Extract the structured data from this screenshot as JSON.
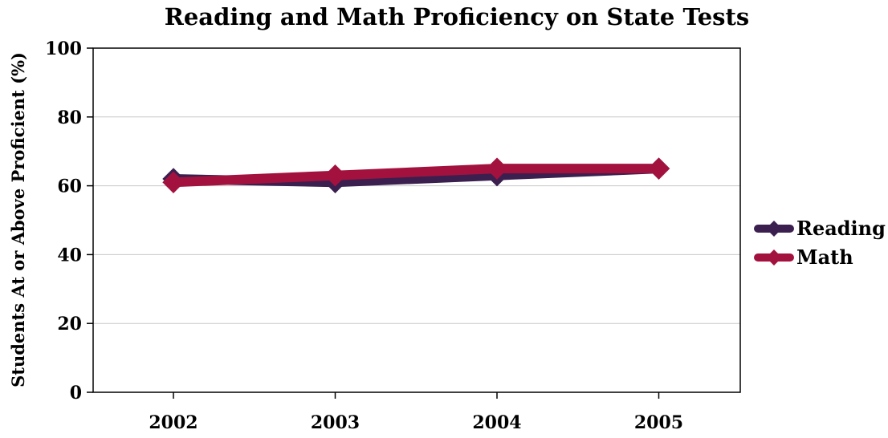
{
  "chart_data": {
    "type": "line",
    "title": "Reading and Math Proficiency on State Tests",
    "xlabel": "",
    "ylabel": "Students At or Above Proficient (%)",
    "categories": [
      "2002",
      "2003",
      "2004",
      "2005"
    ],
    "ylim": [
      0,
      100
    ],
    "yticks": [
      0,
      20,
      40,
      60,
      80,
      100
    ],
    "grid": true,
    "legend_position": "right",
    "series": [
      {
        "name": "Reading",
        "values": [
          62,
          61,
          63,
          65
        ],
        "color": "#3a1f4f"
      },
      {
        "name": "Math",
        "values": [
          61,
          63,
          65,
          65
        ],
        "color": "#a3123f"
      }
    ]
  }
}
